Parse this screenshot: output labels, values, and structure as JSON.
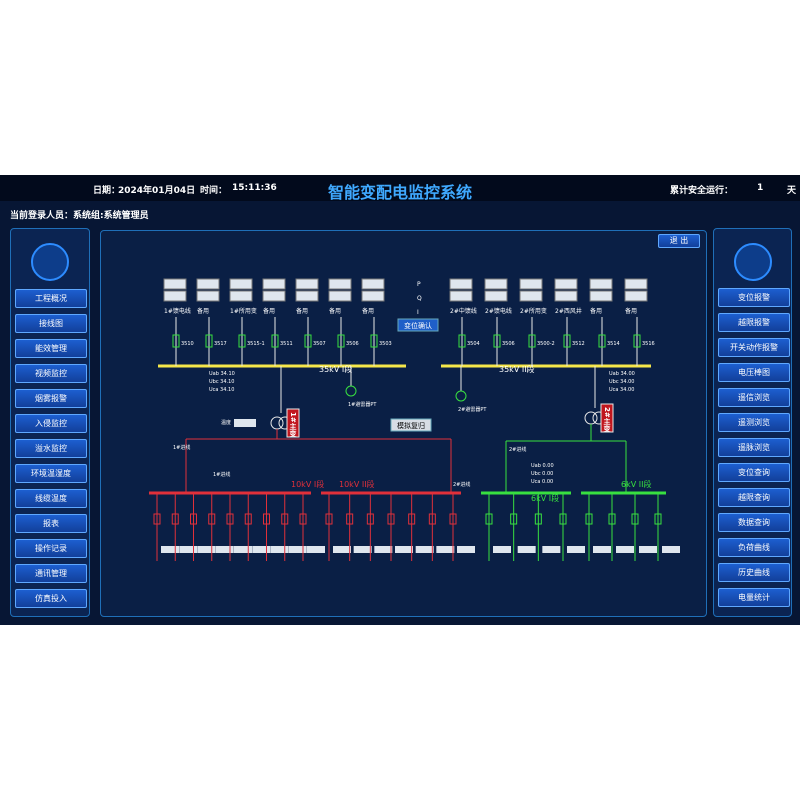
{
  "header": {
    "date_label": "日期：",
    "date": "2024年01月04日",
    "time_label": "时间：",
    "time": "15:11:36",
    "title": "智能变配电监控系统",
    "safe_run_label": "累计安全运行：",
    "safe_run_days": "1",
    "safe_run_unit": "天",
    "login": "当前登录人员：系统组:系统管理员"
  },
  "left_menu": [
    "工程概况",
    "接线图",
    "能效管理",
    "视频监控",
    "烟雾报警",
    "入侵监控",
    "溢水监控",
    "环境温湿度",
    "线缆温度",
    "报表",
    "操作记录",
    "通讯管理",
    "仿真投入"
  ],
  "right_menu": [
    "变位报警",
    "越限报警",
    "开关动作报警",
    "电压棒图",
    "遥信浏览",
    "遥测浏览",
    "遥脉浏览",
    "变位查询",
    "越限查询",
    "数据查询",
    "负荷曲线",
    "历史曲线",
    "电量统计"
  ],
  "exit_button": "退 出",
  "diagram": {
    "buses": [
      "35kV I段",
      "35kV II段",
      "10kV I段",
      "10kV II段",
      "6kV I段",
      "6kV II段"
    ],
    "feeders_left": [
      {
        "name": "1#馈电线",
        "code": "3510"
      },
      {
        "name": "备用",
        "code": "3517"
      },
      {
        "name": "1#所用变",
        "code": "3515-1"
      },
      {
        "name": "备用",
        "code": "3511"
      },
      {
        "name": "备用",
        "code": "3507"
      },
      {
        "name": "备用",
        "code": "3506"
      },
      {
        "name": "备用",
        "code": "3503"
      }
    ],
    "feeders_right": [
      {
        "name": "2#中馈线",
        "code": "3504"
      },
      {
        "name": "2#馈电线",
        "code": "3506"
      },
      {
        "name": "2#所用变",
        "code": "3500-2"
      },
      {
        "name": "2#西风井",
        "code": "3512"
      },
      {
        "name": "备用",
        "code": "3514"
      },
      {
        "name": "备用",
        "code": "3516"
      }
    ],
    "pqi": [
      "P",
      "Q",
      "I"
    ],
    "transformers": [
      "1#主变",
      "2#主变"
    ],
    "buttons": [
      "变位确认",
      "模拟复归"
    ],
    "pt_labels": [
      "1#避雷器PT",
      "2#避雷器PT"
    ],
    "incoming": [
      "1#进线",
      "1#进线",
      "2#进线",
      "2#进线"
    ],
    "temperature_label": "温度",
    "readings_35_1": [
      "Uab 34.10",
      "Ubc 34.10",
      "Uca 34.10"
    ],
    "readings_35_2": [
      "Uab 34.00",
      "Ubc 34.00",
      "Uca 34.00"
    ],
    "readings_6": [
      "Uab 0.00",
      "Ubc 0.00",
      "Uca 0.00"
    ]
  }
}
